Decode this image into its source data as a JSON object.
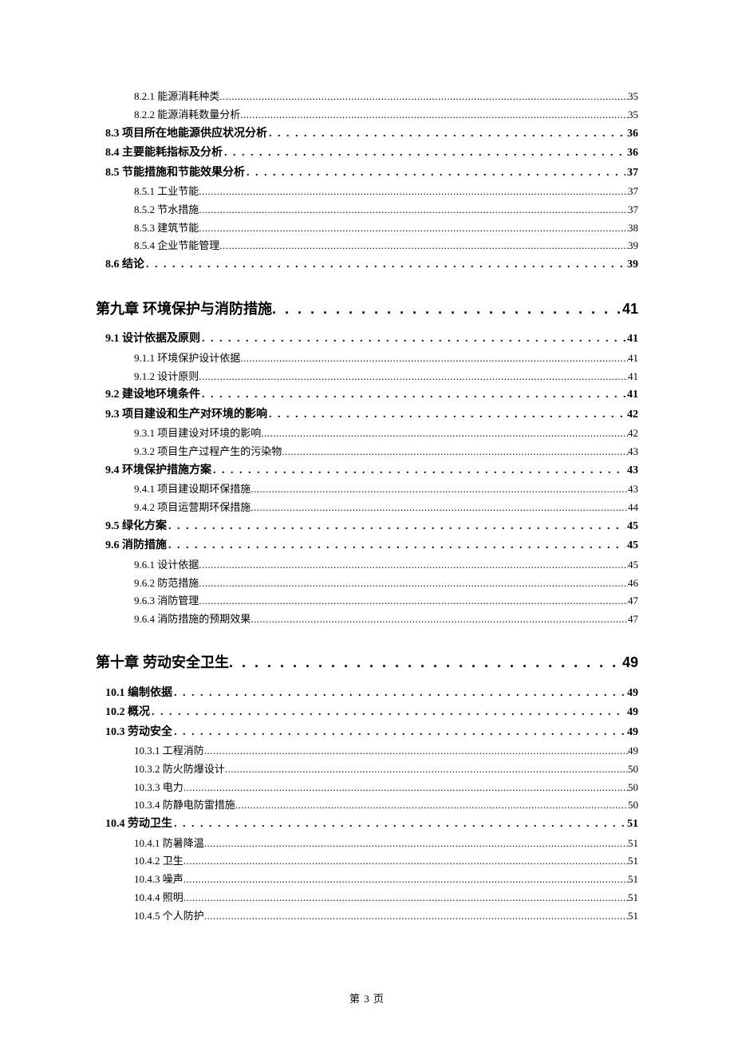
{
  "entries": [
    {
      "level": 3,
      "label": "8.2.1 能源消耗种类",
      "page": "35"
    },
    {
      "level": 3,
      "label": "8.2.2 能源消耗数量分析",
      "page": "35"
    },
    {
      "level": 2,
      "label": "8.3 项目所在地能源供应状况分析",
      "page": "36"
    },
    {
      "level": 2,
      "label": "8.4 主要能耗指标及分析",
      "page": "36"
    },
    {
      "level": 2,
      "label": "8.5 节能措施和节能效果分析",
      "page": "37"
    },
    {
      "level": 3,
      "label": "8.5.1 工业节能",
      "page": "37"
    },
    {
      "level": 3,
      "label": "8.5.2 节水措施",
      "page": "37"
    },
    {
      "level": 3,
      "label": "8.5.3 建筑节能",
      "page": "38"
    },
    {
      "level": 3,
      "label": "8.5.4 企业节能管理",
      "page": "39"
    },
    {
      "level": 2,
      "label": "8.6 结论",
      "page": "39"
    },
    {
      "level": 1,
      "label": "第九章  环境保护与消防措施",
      "page": "41"
    },
    {
      "level": 2,
      "label": "9.1 设计依据及原则",
      "page": "41"
    },
    {
      "level": 3,
      "label": "9.1.1 环境保护设计依据",
      "page": "41"
    },
    {
      "level": 3,
      "label": "9.1.2 设计原则",
      "page": "41"
    },
    {
      "level": 2,
      "label": "9.2 建设地环境条件",
      "page": "41"
    },
    {
      "level": 2,
      "label": "9.3  项目建设和生产对环境的影响",
      "page": "42"
    },
    {
      "level": 3,
      "label": "9.3.1  项目建设对环境的影响",
      "page": "42"
    },
    {
      "level": 3,
      "label": "9.3.2  项目生产过程产生的污染物",
      "page": "43"
    },
    {
      "level": 2,
      "label": "9.4  环境保护措施方案",
      "page": "43"
    },
    {
      "level": 3,
      "label": "9.4.1  项目建设期环保措施",
      "page": "43"
    },
    {
      "level": 3,
      "label": "9.4.2  项目运营期环保措施",
      "page": "44"
    },
    {
      "level": 2,
      "label": "9.5 绿化方案",
      "page": "45"
    },
    {
      "level": 2,
      "label": "9.6 消防措施",
      "page": "45"
    },
    {
      "level": 3,
      "label": "9.6.1 设计依据",
      "page": "45"
    },
    {
      "level": 3,
      "label": "9.6.2 防范措施",
      "page": "46"
    },
    {
      "level": 3,
      "label": "9.6.3 消防管理",
      "page": "47"
    },
    {
      "level": 3,
      "label": "9.6.4 消防措施的预期效果",
      "page": "47"
    },
    {
      "level": 1,
      "label": "第十章  劳动安全卫生",
      "page": "49"
    },
    {
      "level": 2,
      "label": "10.1  编制依据",
      "page": "49"
    },
    {
      "level": 2,
      "label": "10.2 概况",
      "page": "49"
    },
    {
      "level": 2,
      "label": "10.3  劳动安全",
      "page": "49"
    },
    {
      "level": 3,
      "label": "10.3.1 工程消防",
      "page": "49"
    },
    {
      "level": 3,
      "label": "10.3.2 防火防爆设计",
      "page": "50"
    },
    {
      "level": 3,
      "label": "10.3.3 电力",
      "page": "50"
    },
    {
      "level": 3,
      "label": "10.3.4 防静电防雷措施",
      "page": "50"
    },
    {
      "level": 2,
      "label": "10.4 劳动卫生",
      "page": "51"
    },
    {
      "level": 3,
      "label": "10.4.1 防暑降温",
      "page": "51"
    },
    {
      "level": 3,
      "label": "10.4.2 卫生",
      "page": "51"
    },
    {
      "level": 3,
      "label": "10.4.3 噪声",
      "page": "51"
    },
    {
      "level": 3,
      "label": "10.4.4 照明",
      "page": "51"
    },
    {
      "level": 3,
      "label": "10.4.5 个人防护",
      "page": "51"
    }
  ],
  "footer": "第 3 页"
}
